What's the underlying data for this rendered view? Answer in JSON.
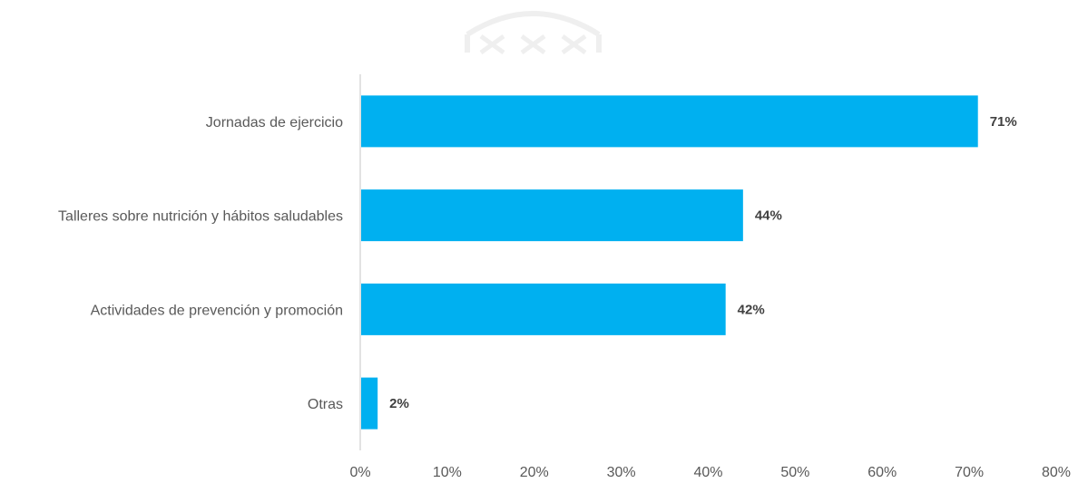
{
  "chart_data": {
    "type": "bar",
    "orientation": "horizontal",
    "categories": [
      "Jornadas de ejercicio",
      "Talleres sobre nutrición y hábitos saludables",
      "Actividades de prevención y promoción",
      "Otras"
    ],
    "values": [
      71,
      44,
      42,
      2
    ],
    "data_labels": [
      "71%",
      "44%",
      "42%",
      "2%"
    ],
    "xlim": [
      0,
      80
    ],
    "x_ticks": [
      0,
      10,
      20,
      30,
      40,
      50,
      60,
      70,
      80
    ],
    "x_tick_labels": [
      "0%",
      "10%",
      "20%",
      "30%",
      "40%",
      "50%",
      "60%",
      "70%",
      "80%"
    ],
    "title": "",
    "xlabel": "",
    "ylabel": "",
    "grid": false,
    "legend": "none",
    "bar_color": "#00B0F0",
    "axis_color": "#D9D9D9"
  }
}
